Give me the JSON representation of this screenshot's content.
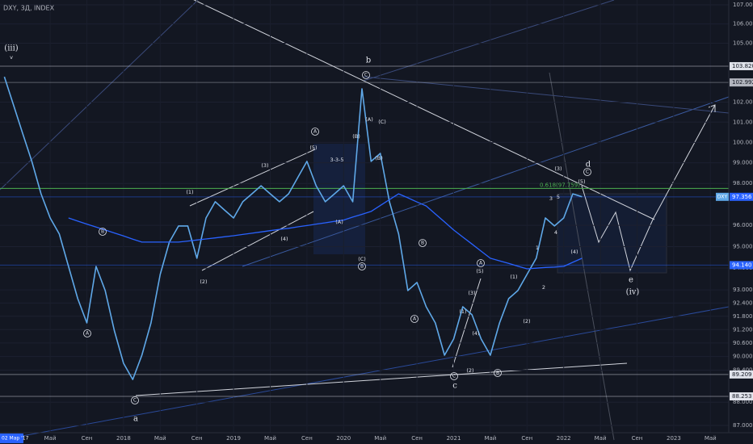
{
  "chart_data": {
    "type": "line",
    "title": "DXY, 3Д, INDEX",
    "log_scale": true,
    "grid": true,
    "x": [
      "2016-12",
      "2017-01",
      "2017-02",
      "2017-03",
      "2017-04",
      "2017-05",
      "2017-06",
      "2017-07",
      "2017-08",
      "2017-09",
      "2017-10",
      "2017-11",
      "2017-12",
      "2018-01",
      "2018-02",
      "2018-03",
      "2018-04",
      "2018-05",
      "2018-06",
      "2018-07",
      "2018-08",
      "2018-09",
      "2018-10",
      "2018-11",
      "2018-12",
      "2019-01",
      "2019-02",
      "2019-03",
      "2019-04",
      "2019-05",
      "2019-06",
      "2019-07",
      "2019-08",
      "2019-09",
      "2019-10",
      "2019-11",
      "2019-12",
      "2020-01",
      "2020-02",
      "2020-03",
      "2020-04",
      "2020-05",
      "2020-06",
      "2020-07",
      "2020-08",
      "2020-09",
      "2020-10",
      "2020-11",
      "2020-12",
      "2021-01",
      "2021-02",
      "2021-03",
      "2021-04",
      "2021-05",
      "2021-06",
      "2021-07",
      "2021-08",
      "2021-09",
      "2021-10",
      "2021-11",
      "2021-12",
      "2022-01",
      "2022-02",
      "2022-03"
    ],
    "series": [
      {
        "name": "DXY",
        "color": "#5fa8e8",
        "values": [
          103.28,
          101.86,
          100.45,
          99.07,
          97.5,
          96.35,
          95.59,
          94.08,
          92.6,
          91.5,
          94.08,
          92.97,
          91.14,
          89.7,
          88.99,
          90.06,
          91.5,
          93.71,
          95.21,
          95.97,
          95.97,
          94.46,
          96.35,
          97.12,
          96.73,
          96.35,
          97.12,
          97.5,
          97.89,
          97.5,
          97.12,
          97.5,
          98.28,
          99.07,
          97.89,
          97.12,
          97.5,
          97.89,
          97.12,
          102.67,
          99.07,
          99.46,
          97.12,
          95.59,
          92.97,
          93.34,
          92.23,
          91.5,
          90.06,
          90.78,
          92.23,
          91.87,
          90.78,
          90.06,
          91.5,
          92.6,
          92.97,
          93.71,
          94.46,
          96.35,
          95.97,
          96.35,
          97.5,
          97.356
        ]
      },
      {
        "color": "#2962ff",
        "values": [
          null,
          null,
          null,
          null,
          null,
          null,
          null,
          96.35,
          96.2,
          96.06,
          95.92,
          95.78,
          95.64,
          95.5,
          95.35,
          95.21,
          95.21,
          95.21,
          95.21,
          95.21,
          95.26,
          95.31,
          95.36,
          95.41,
          95.46,
          95.51,
          95.57,
          95.63,
          95.69,
          95.75,
          95.81,
          95.86,
          95.93,
          95.99,
          96.06,
          96.12,
          96.19,
          96.25,
          96.39,
          96.52,
          96.66,
          96.94,
          97.22,
          97.5,
          97.31,
          97.11,
          96.92,
          96.54,
          96.16,
          95.78,
          95.45,
          95.12,
          94.79,
          94.46,
          94.34,
          94.22,
          94.09,
          93.97,
          94.0,
          94.03,
          94.05,
          94.08,
          94.27,
          94.46
        ]
      }
    ],
    "xlim": [
      "2016-11",
      "2023-07"
    ],
    "xticks": [
      {
        "value": "2017-05",
        "label": "Май"
      },
      {
        "value": "2017-09",
        "label": "Сен"
      },
      {
        "value": "2018-01",
        "label": "2018"
      },
      {
        "value": "2018-05",
        "label": "Май"
      },
      {
        "value": "2018-09",
        "label": "Сен"
      },
      {
        "value": "2019-01",
        "label": "2019"
      },
      {
        "value": "2019-05",
        "label": "Май"
      },
      {
        "value": "2019-09",
        "label": "Сен"
      },
      {
        "value": "2020-01",
        "label": "2020"
      },
      {
        "value": "2020-05",
        "label": "Май"
      },
      {
        "value": "2020-09",
        "label": "Сен"
      },
      {
        "value": "2021-01",
        "label": "2021"
      },
      {
        "value": "2021-05",
        "label": "Май"
      },
      {
        "value": "2021-09",
        "label": "Сен"
      },
      {
        "value": "2022-01",
        "label": "2022"
      },
      {
        "value": "2022-05",
        "label": "Май"
      },
      {
        "value": "2022-09",
        "label": "Сен"
      },
      {
        "value": "2023-01",
        "label": "2023"
      },
      {
        "value": "2023-05",
        "label": "Май"
      }
    ],
    "cursor_label": "02 Мар '17",
    "ylim": [
      87,
      107
    ],
    "yticks": [
      {
        "value": 107,
        "label": "107.000"
      },
      {
        "value": 106,
        "label": "106.000"
      },
      {
        "value": 105,
        "label": "105.000"
      },
      {
        "value": 102,
        "label": "102.000"
      },
      {
        "value": 101,
        "label": "101.000"
      },
      {
        "value": 100,
        "label": "100.000"
      },
      {
        "value": 99,
        "label": "99.000"
      },
      {
        "value": 98,
        "label": "98.000"
      },
      {
        "value": 96,
        "label": "96.000"
      },
      {
        "value": 95,
        "label": "95.000"
      },
      {
        "value": 94,
        "label": "94.000"
      },
      {
        "value": 93,
        "label": "93.000"
      },
      {
        "value": 92.4,
        "label": "92.400"
      },
      {
        "value": 91.8,
        "label": "91.800"
      },
      {
        "value": 91.2,
        "label": "91.200"
      },
      {
        "value": 90.6,
        "label": "90.600"
      },
      {
        "value": 90,
        "label": "90.000"
      },
      {
        "value": 89.4,
        "label": "89.400"
      },
      {
        "value": 88,
        "label": "88.000"
      },
      {
        "value": 87,
        "label": "87.000"
      }
    ],
    "price_labels": [
      {
        "value": 103.82,
        "label": "103.820",
        "color": "#e0e3eb"
      },
      {
        "value": 102.992,
        "label": "102.992",
        "color": "#b2b5be"
      },
      {
        "value": 97.356,
        "label": "97.356",
        "color": "#2962ff"
      },
      {
        "value": 94.14,
        "label": "94.140",
        "color": "#2962ff"
      },
      {
        "value": 89.209,
        "label": "89.209",
        "color": "#e0e3eb"
      },
      {
        "value": 88.253,
        "label": "88.253",
        "color": "#e0e3eb"
      }
    ],
    "fib_level": {
      "value": 97.759,
      "label": "0.618(97.759)",
      "color": "#4caf50"
    },
    "annotations": [
      "(iii)",
      "v",
      "b",
      "C",
      "A",
      "(5)",
      "(3)",
      "(1)",
      "(4)",
      "(2)",
      "3-3-5",
      "(B)",
      "(A)",
      "(C)",
      "(B)",
      "(A)",
      "(C)",
      "B",
      "B",
      "A",
      "C",
      "a",
      "B",
      "A",
      "A",
      "(5)",
      "(3)",
      "(1)",
      "(4)",
      "(2)",
      "C",
      "c",
      "B",
      "(1)",
      "(2)",
      "1",
      "2",
      "3",
      "5",
      "(3)",
      "4",
      "(4)",
      "(5)",
      "C",
      "d",
      "e",
      "(iv)"
    ]
  }
}
